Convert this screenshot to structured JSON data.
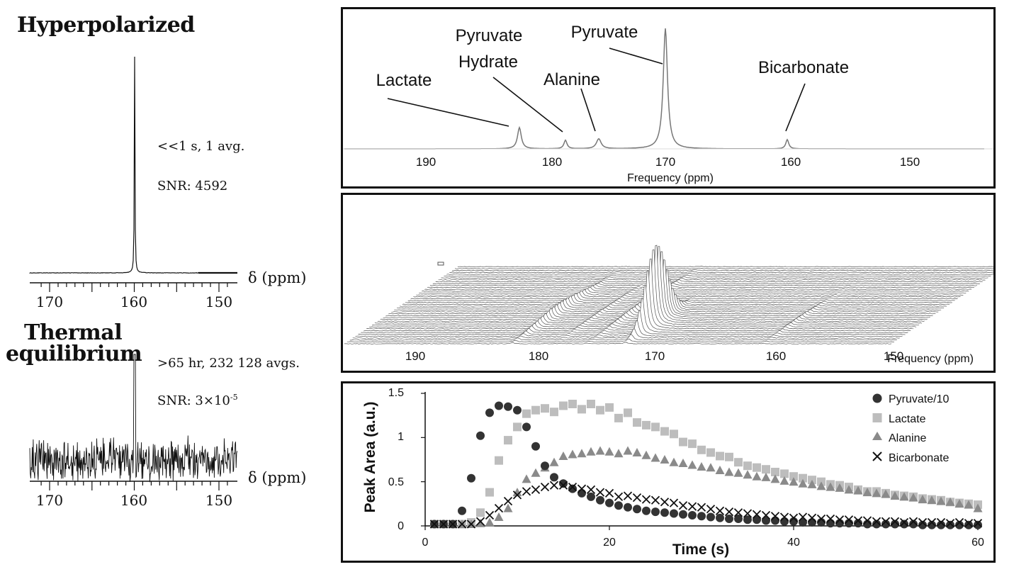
{
  "colors": {
    "ink": "#111111",
    "pyruvate": "#333333",
    "lactate": "#bdbdbd",
    "alanine": "#8a8a8a",
    "bicarbonate": "#111111"
  },
  "left": {
    "hyper": {
      "title": "Hyperpolarized",
      "note1": "<<1 s, 1 avg.",
      "note2": "SNR: 4592",
      "axis_label": "δ (ppm)",
      "ticks": [
        "170",
        "160",
        "150"
      ]
    },
    "thermal": {
      "title_line1": "Thermal",
      "title_line2": "equilibrium",
      "note1": ">65 hr, 232 128 avgs.",
      "note2_base": "SNR: 3×10",
      "note2_exp": "-5",
      "axis_label": "δ (ppm)",
      "ticks": [
        "170",
        "160",
        "150"
      ]
    }
  },
  "spectrum": {
    "peak_labels": [
      "Lactate",
      "Pyruvate",
      "Hydrate",
      "Alanine",
      "Pyruvate",
      "Bicarbonate"
    ],
    "ticks": [
      "190",
      "180",
      "170",
      "160",
      "150"
    ],
    "xlabel": "Frequency (ppm)"
  },
  "stack": {
    "ticks": [
      "190",
      "180",
      "170",
      "160",
      "150"
    ],
    "xlabel": "Frequency (ppm)"
  },
  "chart_data": {
    "type": "scatter",
    "xlabel": "Time (s)",
    "ylabel": "Peak Area (a.u.)",
    "xlim": [
      0,
      60
    ],
    "ylim": [
      0,
      1.5
    ],
    "xticks": [
      "0",
      "20",
      "40",
      "60"
    ],
    "yticks": [
      "0",
      "0.5",
      "1",
      "1.5"
    ],
    "legend": "top-right",
    "series": [
      {
        "name": "Pyruvate/10",
        "marker": "circle",
        "x": [
          1,
          2,
          3,
          4,
          5,
          6,
          7,
          8,
          9,
          10,
          11,
          12,
          13,
          14,
          15,
          16,
          17,
          18,
          19,
          20,
          21,
          22,
          23,
          24,
          25,
          26,
          27,
          28,
          29,
          30,
          31,
          32,
          33,
          34,
          35,
          36,
          37,
          38,
          39,
          40,
          41,
          42,
          43,
          44,
          45,
          46,
          47,
          48,
          49,
          50,
          51,
          52,
          53,
          54,
          55,
          56,
          57,
          58,
          59,
          60
        ],
        "y": [
          0.02,
          0.02,
          0.02,
          0.17,
          0.54,
          1.02,
          1.28,
          1.36,
          1.35,
          1.31,
          1.12,
          0.9,
          0.68,
          0.55,
          0.48,
          0.42,
          0.37,
          0.33,
          0.29,
          0.26,
          0.23,
          0.21,
          0.19,
          0.17,
          0.16,
          0.15,
          0.14,
          0.13,
          0.12,
          0.11,
          0.1,
          0.09,
          0.08,
          0.08,
          0.07,
          0.07,
          0.06,
          0.06,
          0.05,
          0.05,
          0.04,
          0.04,
          0.04,
          0.03,
          0.03,
          0.03,
          0.03,
          0.02,
          0.02,
          0.02,
          0.02,
          0.02,
          0.02,
          0.01,
          0.01,
          0.01,
          0.01,
          0.01,
          0.01,
          0.01
        ]
      },
      {
        "name": "Lactate",
        "marker": "square",
        "x": [
          1,
          2,
          3,
          4,
          5,
          6,
          7,
          8,
          9,
          10,
          11,
          12,
          13,
          14,
          15,
          16,
          17,
          18,
          19,
          20,
          21,
          22,
          23,
          24,
          25,
          26,
          27,
          28,
          29,
          30,
          31,
          32,
          33,
          34,
          35,
          36,
          37,
          38,
          39,
          40,
          41,
          42,
          43,
          44,
          45,
          46,
          47,
          48,
          49,
          50,
          51,
          52,
          53,
          54,
          55,
          56,
          57,
          58,
          59,
          60
        ],
        "y": [
          0.02,
          0.02,
          0.02,
          0.02,
          0.04,
          0.15,
          0.38,
          0.74,
          0.97,
          1.12,
          1.27,
          1.31,
          1.33,
          1.29,
          1.36,
          1.38,
          1.32,
          1.38,
          1.31,
          1.34,
          1.22,
          1.28,
          1.17,
          1.14,
          1.12,
          1.07,
          1.04,
          0.95,
          0.93,
          0.86,
          0.83,
          0.79,
          0.78,
          0.72,
          0.68,
          0.66,
          0.64,
          0.61,
          0.59,
          0.56,
          0.54,
          0.52,
          0.5,
          0.47,
          0.46,
          0.44,
          0.41,
          0.39,
          0.39,
          0.37,
          0.35,
          0.34,
          0.33,
          0.31,
          0.3,
          0.29,
          0.27,
          0.26,
          0.25,
          0.24
        ]
      },
      {
        "name": "Alanine",
        "marker": "triangle",
        "x": [
          1,
          2,
          3,
          4,
          5,
          6,
          7,
          8,
          9,
          10,
          11,
          12,
          13,
          14,
          15,
          16,
          17,
          18,
          19,
          20,
          21,
          22,
          23,
          24,
          25,
          26,
          27,
          28,
          29,
          30,
          31,
          32,
          33,
          34,
          35,
          36,
          37,
          38,
          39,
          40,
          41,
          42,
          43,
          44,
          45,
          46,
          47,
          48,
          49,
          50,
          51,
          52,
          53,
          54,
          55,
          56,
          57,
          58,
          59,
          60
        ],
        "y": [
          0.02,
          0.02,
          0.02,
          0.02,
          0.02,
          0.03,
          0.04,
          0.1,
          0.2,
          0.38,
          0.53,
          0.6,
          0.66,
          0.72,
          0.79,
          0.81,
          0.82,
          0.84,
          0.85,
          0.84,
          0.82,
          0.85,
          0.83,
          0.8,
          0.77,
          0.75,
          0.72,
          0.71,
          0.69,
          0.67,
          0.66,
          0.63,
          0.61,
          0.6,
          0.58,
          0.56,
          0.55,
          0.53,
          0.51,
          0.5,
          0.48,
          0.47,
          0.45,
          0.44,
          0.43,
          0.41,
          0.4,
          0.38,
          0.37,
          0.36,
          0.34,
          0.33,
          0.32,
          0.3,
          0.29,
          0.28,
          0.27,
          0.25,
          0.24,
          0.2
        ]
      },
      {
        "name": "Bicarbonate",
        "marker": "x",
        "x": [
          1,
          2,
          3,
          4,
          5,
          6,
          7,
          8,
          9,
          10,
          11,
          12,
          13,
          14,
          15,
          16,
          17,
          18,
          19,
          20,
          21,
          22,
          23,
          24,
          25,
          26,
          27,
          28,
          29,
          30,
          31,
          32,
          33,
          34,
          35,
          36,
          37,
          38,
          39,
          40,
          41,
          42,
          43,
          44,
          45,
          46,
          47,
          48,
          49,
          50,
          51,
          52,
          53,
          54,
          55,
          56,
          57,
          58,
          59,
          60
        ],
        "y": [
          0.02,
          0.02,
          0.02,
          0.02,
          0.02,
          0.05,
          0.12,
          0.2,
          0.28,
          0.35,
          0.39,
          0.41,
          0.44,
          0.46,
          0.46,
          0.44,
          0.42,
          0.41,
          0.38,
          0.37,
          0.33,
          0.34,
          0.32,
          0.3,
          0.29,
          0.27,
          0.26,
          0.23,
          0.22,
          0.21,
          0.19,
          0.17,
          0.16,
          0.15,
          0.14,
          0.13,
          0.12,
          0.11,
          0.1,
          0.09,
          0.1,
          0.09,
          0.08,
          0.08,
          0.07,
          0.07,
          0.06,
          0.06,
          0.05,
          0.05,
          0.05,
          0.04,
          0.05,
          0.04,
          0.04,
          0.04,
          0.03,
          0.04,
          0.03,
          0.03
        ]
      }
    ]
  }
}
